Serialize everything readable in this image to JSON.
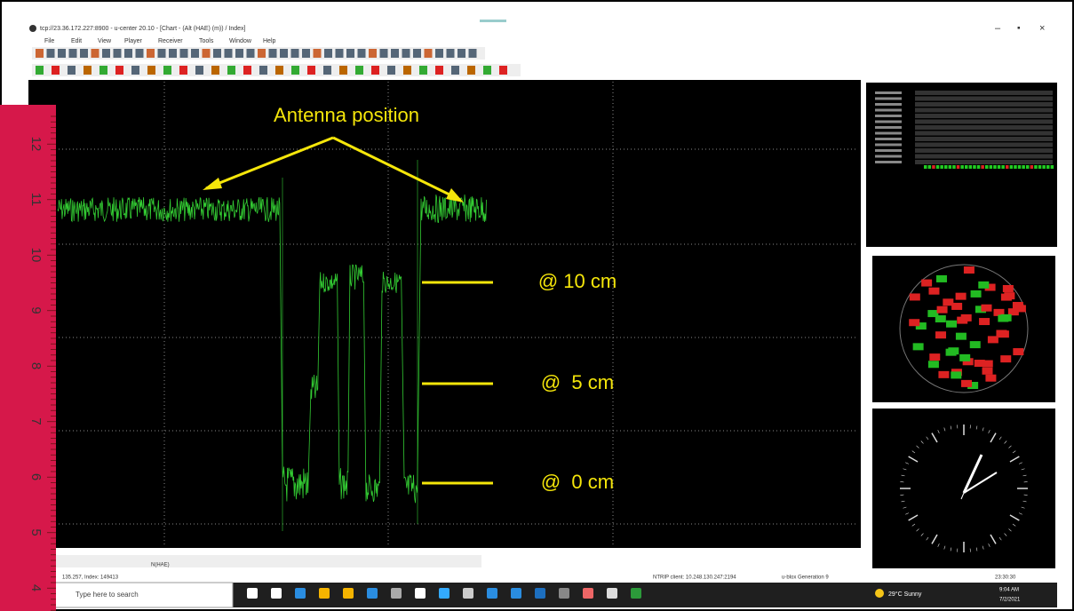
{
  "window": {
    "title": "tcp://23.36.172.227:8900 - u-center 20.10 - [Chart - (Alt (HAE) (m)) / Index]",
    "menu": [
      "File",
      "Edit",
      "View",
      "Player",
      "Receiver",
      "Tools",
      "Window",
      "Help"
    ]
  },
  "annotations": {
    "antenna": "Antenna position",
    "levels": [
      "@ 10 cm",
      "@  5 cm",
      "@  0 cm"
    ]
  },
  "ruler": {
    "labels": [
      "12",
      "11",
      "10",
      "9",
      "8",
      "7",
      "6",
      "5",
      "4"
    ]
  },
  "status": {
    "left": "N(HAE)",
    "index": "135.257, Index: 149413",
    "ntrip": "NTRIP client: 10.248.130.247:2194",
    "receiver": "u-blox Generation 9",
    "time": "23:30:30"
  },
  "taskbar": {
    "search": "Type here to search",
    "weather": "29°C Sunny",
    "clock": "9:04 AM",
    "date": "7/2/2021"
  }
}
